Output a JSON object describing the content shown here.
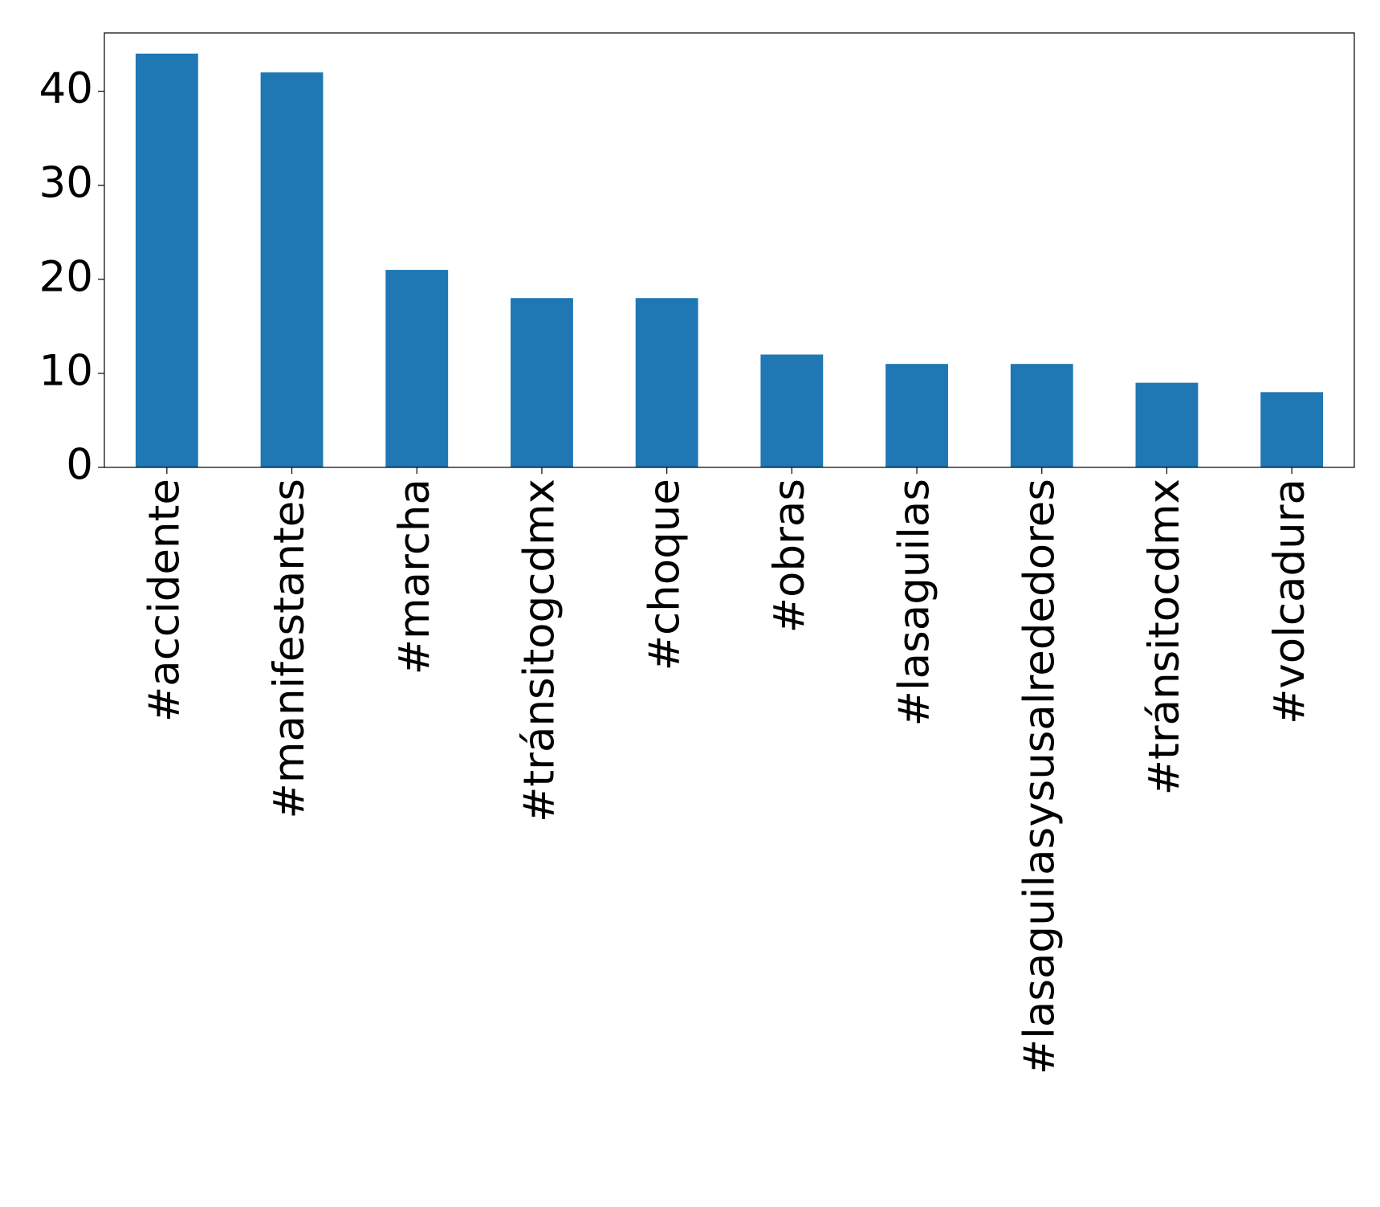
{
  "chart_data": {
    "type": "bar",
    "categories": [
      "#accidente",
      "#manifestantes",
      "#marcha",
      "#tránsitogcdmx",
      "#choque",
      "#obras",
      "#lasaguilas",
      "#lasaguilasysusalrededores",
      "#tránsitocdmx",
      "#volcadura"
    ],
    "values": [
      44,
      42,
      21,
      18,
      18,
      12,
      11,
      11,
      9,
      8
    ],
    "color": "#1f77b4",
    "ylim": [
      0,
      46.2
    ],
    "yticks": [
      0,
      10,
      20,
      30,
      40
    ],
    "grid": false
  }
}
